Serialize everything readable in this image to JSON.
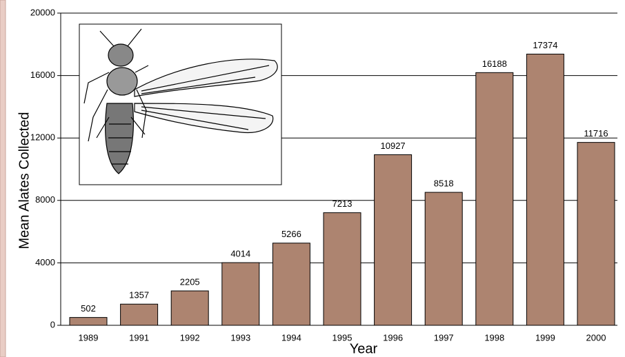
{
  "chart_data": {
    "type": "bar",
    "xlabel": "Year",
    "ylabel": "Mean Alates Collected",
    "categories": [
      "1989",
      "1991",
      "1992",
      "1993",
      "1994",
      "1995",
      "1996",
      "1997",
      "1998",
      "1999",
      "2000"
    ],
    "values": [
      502,
      1357,
      2205,
      4014,
      5266,
      7213,
      10927,
      8518,
      16188,
      17374,
      11716
    ],
    "color": "#ad8470",
    "ylim": [
      0,
      20000
    ],
    "yticks": [
      0,
      4000,
      8000,
      12000,
      16000,
      20000
    ],
    "grid": true
  }
}
